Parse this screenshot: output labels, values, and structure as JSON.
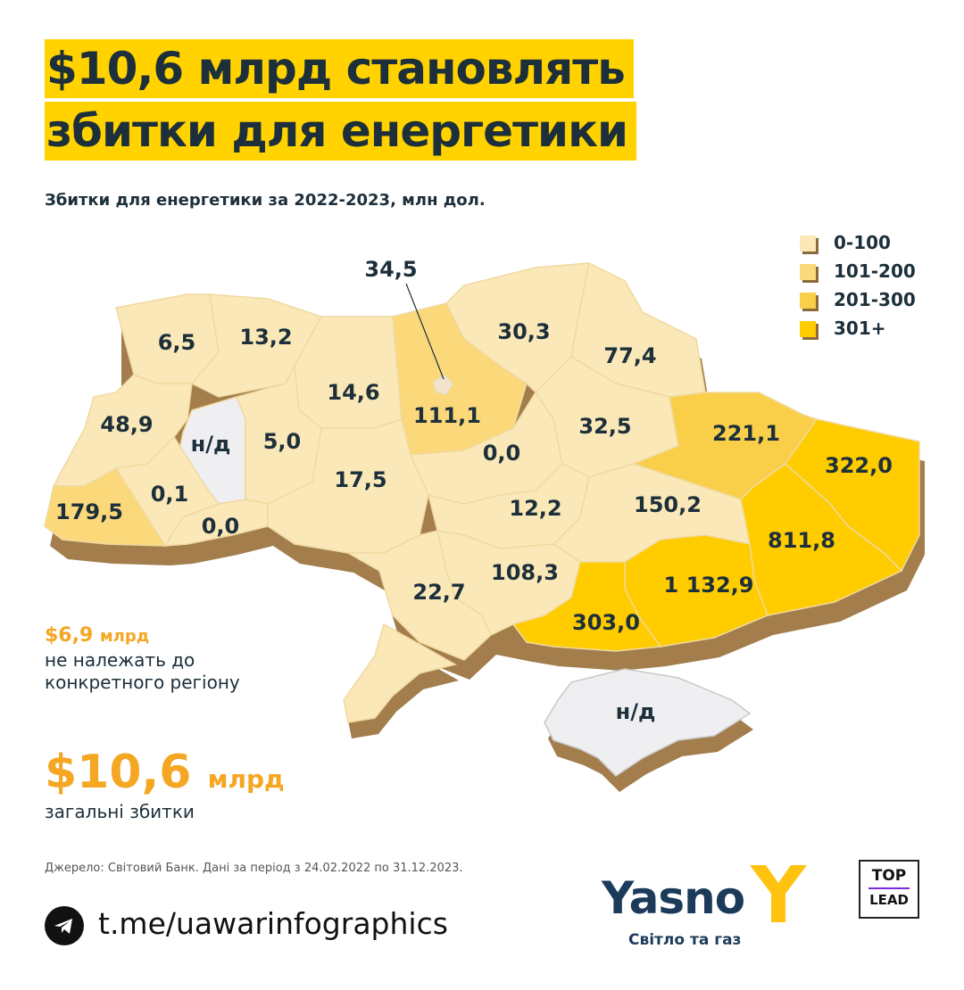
{
  "headline": {
    "line1": "$10,6 млрд становлять",
    "line2": "збитки для енергетики"
  },
  "subtitle": "Збитки для енергетики за 2022-2023, млн дол.",
  "legend": [
    {
      "label": "0-100",
      "color": "#fbe8b8"
    },
    {
      "label": "101-200",
      "color": "#fbd97a"
    },
    {
      "label": "201-300",
      "color": "#f9cf4a"
    },
    {
      "label": "301+",
      "color": "#ffcc00"
    }
  ],
  "regions": {
    "volyn": "6,5",
    "rivne": "13,2",
    "zhytomyr": "14,6",
    "kyiv_oblast": "111,1",
    "kyiv_city": "34,5",
    "chernihiv": "30,3",
    "sumy": "77,4",
    "lviv": "48,9",
    "ternopil_na": "н/д",
    "khmelnytskyi": "5,0",
    "zakarpattia": "179,5",
    "ivano_frankivsk": "0,1",
    "chernivtsi": "0,0",
    "vinnytsia": "17,5",
    "cherkasy": "0,0",
    "poltava": "32,5",
    "kharkiv": "221,1",
    "luhansk": "322,0",
    "kirovohrad": "12,2",
    "dnipropetrovsk": "150,2",
    "donetsk": "811,8",
    "zaporizhzhia": "1 132,9",
    "mykolaiv": "108,3",
    "kherson": "303,0",
    "odesa": "22,7",
    "crimea_na": "н/д"
  },
  "note": {
    "amount": "$6,9",
    "unit": "млрд",
    "text": "не належать до конкретного регіону"
  },
  "total": {
    "amount": "$10,6",
    "unit": "млрд",
    "text": "загальні збитки"
  },
  "source": "Джерело: Світовий Банк. Дані за період з 24.02.2022 по 31.12.2023.",
  "telegram": "t.me/uawarinfographics",
  "brand": {
    "name": "Yasno",
    "tagline": "Світло та газ",
    "partner_line1": "TOP",
    "partner_line2": "LEAD"
  },
  "colors": {
    "accent": "#ffd200",
    "orange": "#f5a623",
    "na": "#efeff1",
    "side": "#a37e4c"
  }
}
